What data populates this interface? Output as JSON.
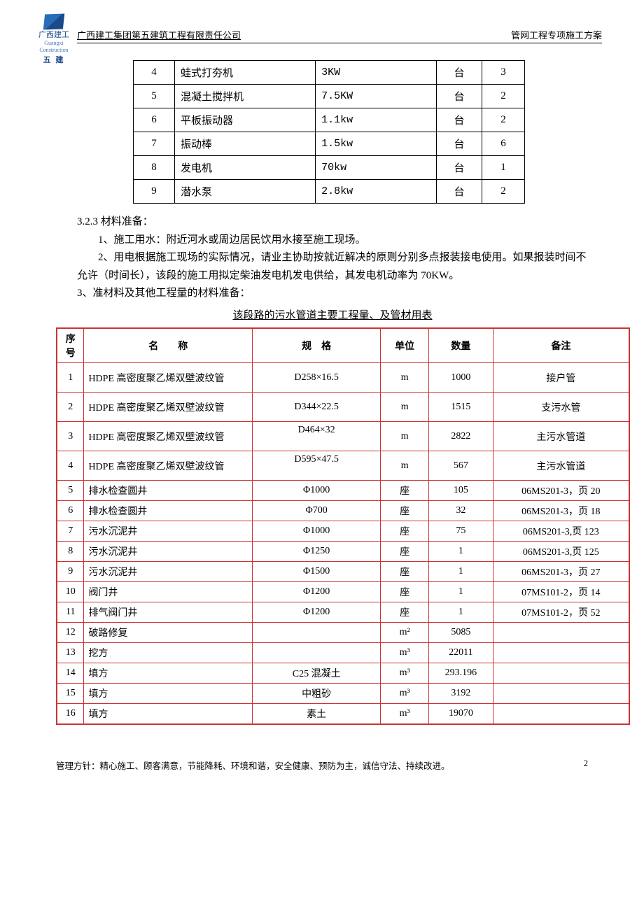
{
  "header": {
    "company": "广西建工集团第五建筑工程有限责任公司",
    "doc": "管网工程专项施工方案",
    "logo_top": "广西建工",
    "logo_sub": "Guangxi Construction",
    "logo_five": "五 建"
  },
  "table1": {
    "rows": [
      {
        "n": "4",
        "name": "蛙式打夯机",
        "spec": "3KW",
        "unit": "台",
        "qty": "3"
      },
      {
        "n": "5",
        "name": "混凝土搅拌机",
        "spec": "7.5KW",
        "unit": "台",
        "qty": "2"
      },
      {
        "n": "6",
        "name": "平板振动器",
        "spec": "1.1kw",
        "unit": "台",
        "qty": "2"
      },
      {
        "n": "7",
        "name": "振动棒",
        "spec": "1.5kw",
        "unit": "台",
        "qty": "6"
      },
      {
        "n": "8",
        "name": "发电机",
        "spec": "70kw",
        "unit": "台",
        "qty": "1"
      },
      {
        "n": "9",
        "name": "潜水泵",
        "spec": "2.8kw",
        "unit": "台",
        "qty": "2"
      }
    ]
  },
  "text": {
    "s323": "3.2.3 材料准备：",
    "p1": "1、施工用水：附近河水或周边居民饮用水接至施工现场。",
    "p2": "2、用电根据施工现场的实际情况，请业主协助按就近解决的原则分别多点报装接电使用。如果报装时间不允许（时间长），该段的施工用拟定柴油发电机发电供给，其发电机动率为 70KW。",
    "p3": "3、准材料及其他工程量的材料准备：",
    "cap": "该段路的污水管道主要工程量、及管材用表"
  },
  "table2": {
    "head": {
      "c1": "序号",
      "c2": "名　　称",
      "c3": "规　格",
      "c4": "单位",
      "c5": "数量",
      "c6": "备注"
    },
    "rows": [
      {
        "n": "1",
        "name": "HDPE 高密度聚乙烯双壁波纹管",
        "spec": "D258×16.5",
        "unit": "m",
        "qty": "1000",
        "note": "接户管",
        "tall": true
      },
      {
        "n": "2",
        "name": "HDPE 高密度聚乙烯双壁波纹管",
        "spec": "D344×22.5",
        "unit": "m",
        "qty": "1515",
        "note": "支污水管",
        "tall": true
      },
      {
        "n": "3",
        "name": "HDPE 高密度聚乙烯双壁波纹管",
        "spec": "D464×32",
        "unit": "m",
        "qty": "2822",
        "note": "主污水管道",
        "tall": true,
        "specTop": true
      },
      {
        "n": "4",
        "name": "HDPE 高密度聚乙烯双壁波纹管",
        "spec": "D595×47.5",
        "unit": "m",
        "qty": "567",
        "note": "主污水管道",
        "tall": true,
        "specTop": true
      },
      {
        "n": "5",
        "name": "排水检查圆井",
        "spec": "Φ1000",
        "unit": "座",
        "qty": "105",
        "note": "06MS201-3，页 20"
      },
      {
        "n": "6",
        "name": "排水检查圆井",
        "spec": "Φ700",
        "unit": "座",
        "qty": "32",
        "note": "06MS201-3，页 18"
      },
      {
        "n": "7",
        "name": "污水沉泥井",
        "spec": "Φ1000",
        "unit": "座",
        "qty": "75",
        "note": "06MS201-3,页 123"
      },
      {
        "n": "8",
        "name": "污水沉泥井",
        "spec": "Φ1250",
        "unit": "座",
        "qty": "1",
        "note": "06MS201-3,页 125"
      },
      {
        "n": "9",
        "name": "污水沉泥井",
        "spec": "Φ1500",
        "unit": "座",
        "qty": "1",
        "note": "06MS201-3，页 27"
      },
      {
        "n": "10",
        "name": "阀门井",
        "spec": "Φ1200",
        "unit": "座",
        "qty": "1",
        "note": "07MS101-2，页 14"
      },
      {
        "n": "11",
        "name": "排气阀门井",
        "spec": "Φ1200",
        "unit": "座",
        "qty": "1",
        "note": "07MS101-2，页 52"
      },
      {
        "n": "12",
        "name": "破路修复",
        "spec": "",
        "unit": "m²",
        "qty": "5085",
        "note": ""
      },
      {
        "n": "13",
        "name": "挖方",
        "spec": "",
        "unit": "m³",
        "qty": "22011",
        "note": ""
      },
      {
        "n": "14",
        "name": "填方",
        "spec": "C25 混凝土",
        "unit": "m³",
        "qty": "293.196",
        "note": ""
      },
      {
        "n": "15",
        "name": "填方",
        "spec": "中粗砂",
        "unit": "m³",
        "qty": "3192",
        "note": ""
      },
      {
        "n": "16",
        "name": "填方",
        "spec": "素土",
        "unit": "m³",
        "qty": "19070",
        "note": ""
      }
    ]
  },
  "footer": {
    "motto": "管理方针：精心施工、顾客满意，节能降耗、环境和谐，安全健康、预防为主，诚信守法、持续改进。",
    "page": "2"
  },
  "style": {
    "table2_border_color": "#cc3333",
    "logo_color": "#1a4a8a",
    "body_fontsize_pt": 11,
    "head_fontsize_pt": 11
  }
}
